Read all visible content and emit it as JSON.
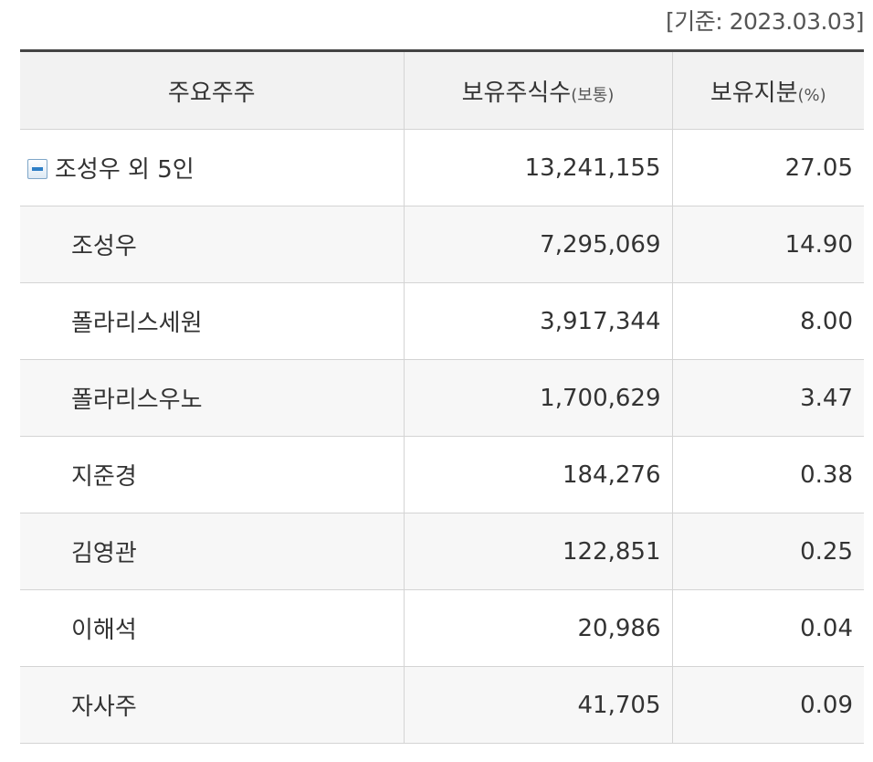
{
  "date_note": "[기준: 2023.03.03]",
  "table": {
    "headers": {
      "holder": "주요주주",
      "shares_main": "보유주식수",
      "shares_sub": "(보통)",
      "pct_main": "보유지분",
      "pct_sub": "(%)"
    },
    "rows": [
      {
        "name": "조성우 외 5인",
        "shares": "13,241,155",
        "pct": "27.05",
        "group": true
      },
      {
        "name": "조성우",
        "shares": "7,295,069",
        "pct": "14.90"
      },
      {
        "name": "폴라리스세원",
        "shares": "3,917,344",
        "pct": "8.00"
      },
      {
        "name": "폴라리스우노",
        "shares": "1,700,629",
        "pct": "3.47"
      },
      {
        "name": "지준경",
        "shares": "184,276",
        "pct": "0.38"
      },
      {
        "name": "김영관",
        "shares": "122,851",
        "pct": "0.25"
      },
      {
        "name": "이해석",
        "shares": "20,986",
        "pct": "0.04"
      },
      {
        "name": "자사주",
        "shares": "41,705",
        "pct": "0.09"
      }
    ]
  },
  "icons": {
    "collapse": "minus-collapse-icon"
  }
}
